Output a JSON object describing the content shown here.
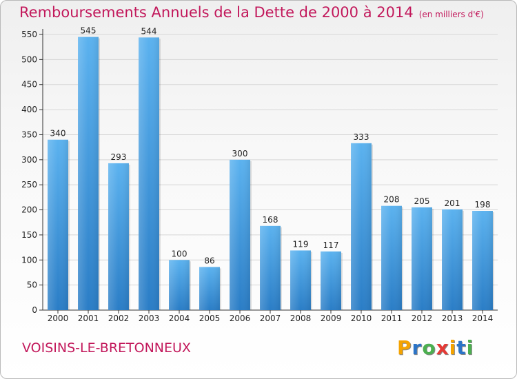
{
  "title": "Remboursements Annuels de la Dette de 2000 à 2014",
  "unit_note": "(en milliers d'€)",
  "location": "VOISINS-LE-BRETONNEUX",
  "logo": {
    "text": [
      "P",
      "r",
      "o",
      "x",
      "i",
      "t",
      "i"
    ],
    "colors": [
      "#f4a300",
      "#2b74c7",
      "#4caf50",
      "#e53935",
      "#f4a300",
      "#2b74c7",
      "#4caf50"
    ]
  },
  "colors": {
    "bar_top": "#5bb2ef",
    "bar_bottom": "#2a7dc6",
    "grid": "#d6d6d6",
    "title": "#c2185b"
  },
  "chart_data": {
    "type": "bar",
    "title": "Remboursements Annuels de la Dette de 2000 à 2014",
    "xlabel": "",
    "ylabel": "",
    "categories": [
      "2000",
      "2001",
      "2002",
      "2003",
      "2004",
      "2005",
      "2006",
      "2007",
      "2008",
      "2009",
      "2010",
      "2011",
      "2012",
      "2013",
      "2014"
    ],
    "values": [
      340,
      545,
      293,
      544,
      100,
      86,
      300,
      168,
      119,
      117,
      333,
      208,
      205,
      201,
      198
    ],
    "ylim": [
      0,
      550
    ],
    "yticks": [
      0,
      50,
      100,
      150,
      200,
      250,
      300,
      350,
      400,
      450,
      500,
      550
    ],
    "grid": true,
    "legend": "none"
  }
}
